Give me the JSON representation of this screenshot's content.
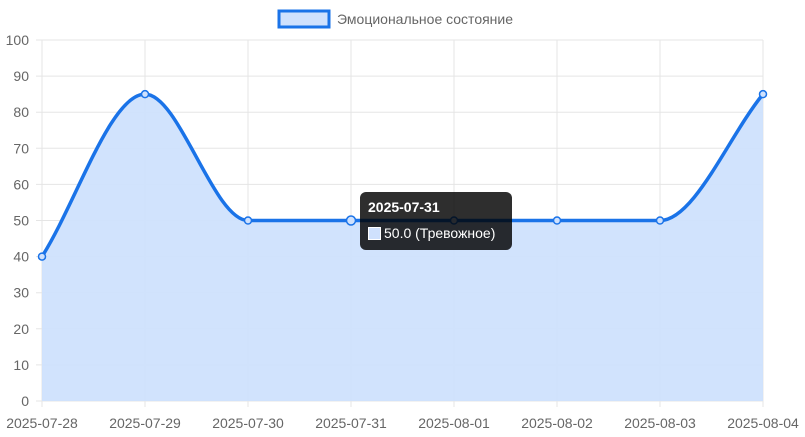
{
  "chart_data": {
    "type": "line",
    "categories": [
      "2025-07-28",
      "2025-07-29",
      "2025-07-30",
      "2025-07-31",
      "2025-08-01",
      "2025-08-02",
      "2025-08-03",
      "2025-08-04"
    ],
    "series": [
      {
        "name": "Эмоциональное состояние",
        "values": [
          40,
          85,
          50,
          50,
          50,
          50,
          50,
          85
        ]
      }
    ],
    "ylim": [
      0,
      100
    ],
    "yticks": [
      0,
      10,
      20,
      30,
      40,
      50,
      60,
      70,
      80,
      90,
      100
    ],
    "grid": true,
    "legend_position": "top-center",
    "fill": true,
    "colors": {
      "line": "#1a73e8",
      "fill": "#cfe1fd",
      "grid": "#e5e5e5"
    }
  },
  "tooltip": {
    "title": "2025-07-31",
    "value": "50.0",
    "label": "(Тревожное)",
    "category_index": 3
  }
}
